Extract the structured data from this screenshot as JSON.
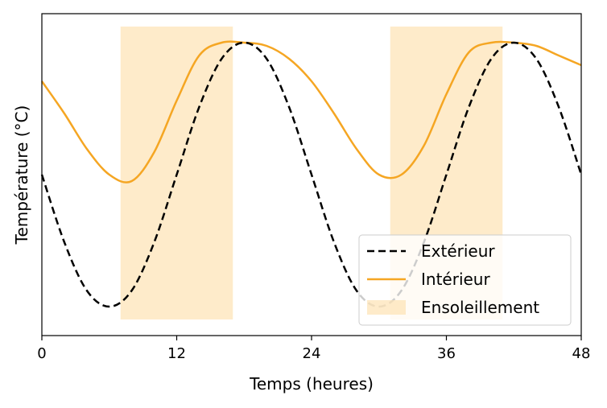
{
  "chart_data": {
    "type": "line",
    "xlabel": "Temps (heures)",
    "ylabel": "Température (°C)",
    "xlim": [
      0,
      48
    ],
    "ylim": [
      0,
      1
    ],
    "xticks": [
      0,
      12,
      24,
      36,
      48
    ],
    "grid": false,
    "legend_position": "bottom-right",
    "x": [
      0,
      2,
      4,
      6,
      8,
      10,
      12,
      14,
      16,
      18,
      20,
      22,
      24,
      26,
      28,
      30,
      32,
      34,
      36,
      38,
      40,
      42,
      44,
      46,
      48
    ],
    "series": [
      {
        "name": "Extérieur",
        "color": "#000000",
        "style": "dashed",
        "values": [
          0.5,
          0.29,
          0.14,
          0.09,
          0.14,
          0.29,
          0.5,
          0.71,
          0.86,
          0.91,
          0.86,
          0.71,
          0.5,
          0.29,
          0.14,
          0.09,
          0.14,
          0.29,
          0.5,
          0.71,
          0.86,
          0.91,
          0.86,
          0.71,
          0.5
        ]
      },
      {
        "name": "Intérieur",
        "color": "#f5a623",
        "style": "solid",
        "values": [
          0.79,
          0.69,
          0.58,
          0.5,
          0.48,
          0.57,
          0.73,
          0.87,
          0.91,
          0.91,
          0.9,
          0.86,
          0.79,
          0.69,
          0.58,
          0.5,
          0.5,
          0.59,
          0.75,
          0.88,
          0.91,
          0.91,
          0.9,
          0.87,
          0.84
        ]
      }
    ],
    "shaded_regions": [
      {
        "name": "Ensoleillement",
        "x_start": 7,
        "x_end": 17,
        "y_start": 0.05,
        "y_end": 0.96,
        "color": "#fde2b3"
      },
      {
        "name": "Ensoleillement",
        "x_start": 31,
        "x_end": 41,
        "y_start": 0.05,
        "y_end": 0.96,
        "color": "#fde2b3"
      }
    ],
    "legend": [
      "Extérieur",
      "Intérieur",
      "Ensoleillement"
    ]
  }
}
